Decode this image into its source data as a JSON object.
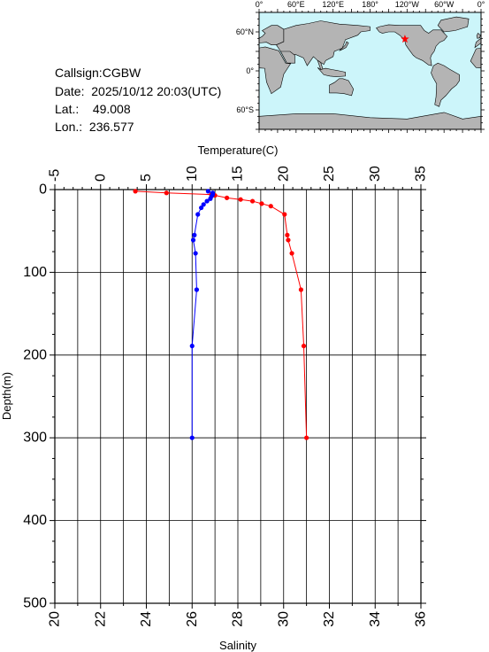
{
  "station": {
    "callsign_label": "Callsign:",
    "callsign": "CGBW",
    "date_label": "Date:",
    "date": "2025/10/12 20:03(UTC)",
    "lat_label": "Lat.:",
    "lat": "49.008",
    "lon_label": "Lon.:",
    "lon": "236.577"
  },
  "map": {
    "lon_labels": [
      "0°",
      "60°E",
      "120°E",
      "180°",
      "120°W",
      "60°W",
      "0°"
    ],
    "lat_labels": [
      "60°N",
      "0°",
      "60°S"
    ],
    "ocean_color": "#ccf5fa",
    "land_color": "#b4b4b4",
    "marker": {
      "type": "star",
      "lon": 236.577,
      "lat": 49.008,
      "color": "#ff0000"
    }
  },
  "chart_data": {
    "type": "line",
    "ylabel": "Depth(m)",
    "ylim": [
      500,
      0
    ],
    "yticks": [
      "0",
      "100",
      "200",
      "300",
      "400",
      "500"
    ],
    "top_axis": {
      "label": "Temperature(C)",
      "lim": [
        -5,
        35
      ],
      "ticks": [
        "-5",
        "0",
        "5",
        "10",
        "15",
        "20",
        "25",
        "30",
        "35"
      ]
    },
    "bottom_axis": {
      "label": "Salinity",
      "lim": [
        20,
        36
      ],
      "ticks": [
        "20",
        "22",
        "24",
        "26",
        "28",
        "30",
        "32",
        "34",
        "36"
      ]
    },
    "grid": true,
    "series": [
      {
        "name": "Temperature(C)",
        "axis": "top",
        "color": "#ff0000",
        "points": [
          [
            3.8,
            2
          ],
          [
            7.2,
            4
          ],
          [
            12.1,
            6
          ],
          [
            12.5,
            7
          ],
          [
            13.8,
            10
          ],
          [
            15.3,
            12
          ],
          [
            16.6,
            14
          ],
          [
            17.6,
            17
          ],
          [
            18.6,
            20
          ],
          [
            20.1,
            30
          ],
          [
            20.4,
            55
          ],
          [
            20.5,
            61
          ],
          [
            20.9,
            77
          ],
          [
            21.9,
            121
          ],
          [
            22.2,
            189
          ],
          [
            22.5,
            300
          ]
        ]
      },
      {
        "name": "Salinity",
        "axis": "bottom",
        "color": "#0000ff",
        "points": [
          [
            26.7,
            2
          ],
          [
            26.9,
            4
          ],
          [
            26.9,
            6
          ],
          [
            26.85,
            8
          ],
          [
            26.8,
            11
          ],
          [
            26.65,
            14
          ],
          [
            26.5,
            18
          ],
          [
            26.4,
            22
          ],
          [
            26.25,
            30
          ],
          [
            26.1,
            55
          ],
          [
            26.05,
            61
          ],
          [
            26.15,
            77
          ],
          [
            26.2,
            121
          ],
          [
            26.0,
            189
          ],
          [
            26.0,
            300
          ]
        ]
      }
    ]
  }
}
